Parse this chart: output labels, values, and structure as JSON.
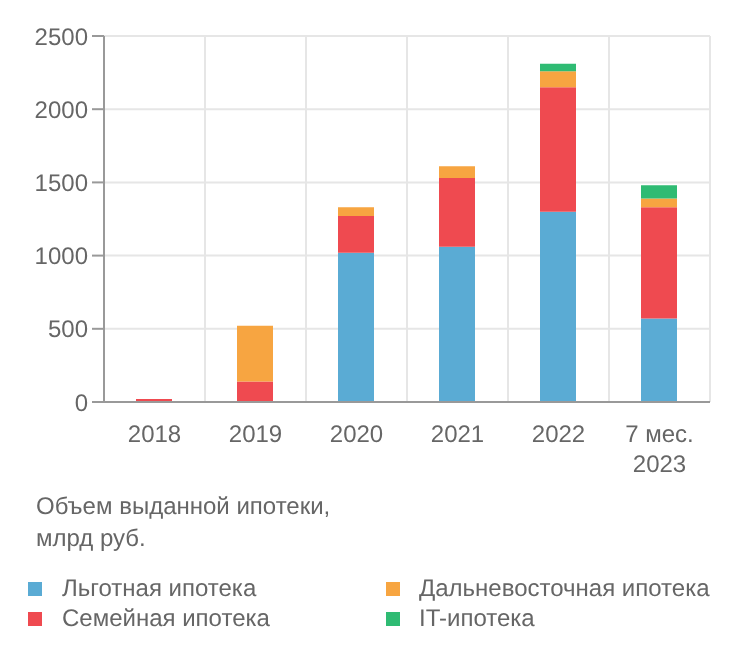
{
  "chart_data": {
    "type": "bar",
    "stacked": true,
    "categories": [
      "2018",
      "2019",
      "2020",
      "2021",
      "2022",
      "7 мес. 2023"
    ],
    "series": [
      {
        "name": "Льготная ипотека",
        "color": "#5aabd4",
        "values": [
          0,
          0,
          1020,
          1060,
          1300,
          570
        ]
      },
      {
        "name": "Семейная ипотека",
        "color": "#ef4a50",
        "values": [
          20,
          140,
          250,
          470,
          850,
          760
        ]
      },
      {
        "name": "Дальневосточная ипотека",
        "color": "#f7a541",
        "values": [
          0,
          380,
          60,
          80,
          110,
          60
        ]
      },
      {
        "name": "IT-ипотека",
        "color": "#2fbb73",
        "values": [
          0,
          0,
          0,
          0,
          50,
          90
        ]
      }
    ],
    "ylabel": "Объем выданной ипотеки, млрд руб.",
    "ylim": [
      0,
      2500
    ],
    "yticks": [
      0,
      500,
      1000,
      1500,
      2000,
      2500
    ],
    "grid": true,
    "legend": "bottom"
  }
}
